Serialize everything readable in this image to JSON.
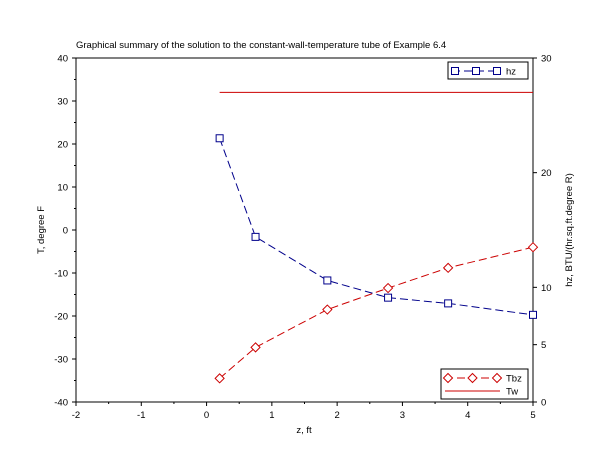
{
  "chart_data": {
    "type": "line",
    "title": "Graphical summary of the solution to the constant-wall-temperature tube of Example 6.4",
    "xlabel": "z, ft",
    "ylabel_left": "T, degree F",
    "ylabel_right": "hz, BTU/(hr.sq.ft.degree R)",
    "xlim": [
      -2,
      5
    ],
    "ylim_left": [
      -40,
      40
    ],
    "ylim_right": [
      0,
      30
    ],
    "x_ticks": [
      "-2",
      "-1",
      "0",
      "1",
      "2",
      "3",
      "4",
      "5"
    ],
    "y_ticks_left": [
      "40",
      "30",
      "20",
      "10",
      "0",
      "-10",
      "-20",
      "-30",
      "-40"
    ],
    "y_ticks_right": [
      "30",
      "20",
      "10",
      "5",
      "0"
    ],
    "grid": false,
    "series": [
      {
        "name": "hz",
        "axis": "right",
        "color": "#00008b",
        "style": "dashed",
        "marker": "square",
        "x": [
          0.2,
          0.75,
          1.85,
          2.78,
          3.7,
          5.0
        ],
        "y": [
          23.0,
          14.4,
          10.6,
          9.1,
          8.6,
          7.6
        ]
      },
      {
        "name": "Tbz",
        "axis": "left",
        "color": "#cc0000",
        "style": "dashed",
        "marker": "diamond",
        "x": [
          0.2,
          0.75,
          1.85,
          2.78,
          3.7,
          5.0
        ],
        "y": [
          -34.5,
          -27.3,
          -18.5,
          -13.5,
          -8.8,
          -4.0
        ]
      },
      {
        "name": "Tw",
        "axis": "left",
        "color": "#cc0000",
        "style": "solid",
        "marker": "none",
        "x": [
          0.2,
          5.0
        ],
        "y": [
          32,
          32
        ]
      }
    ],
    "legends": [
      {
        "placement": "top-right",
        "entries": [
          "hz"
        ]
      },
      {
        "placement": "bottom-right",
        "entries": [
          "Tbz",
          "Tw"
        ]
      }
    ]
  }
}
